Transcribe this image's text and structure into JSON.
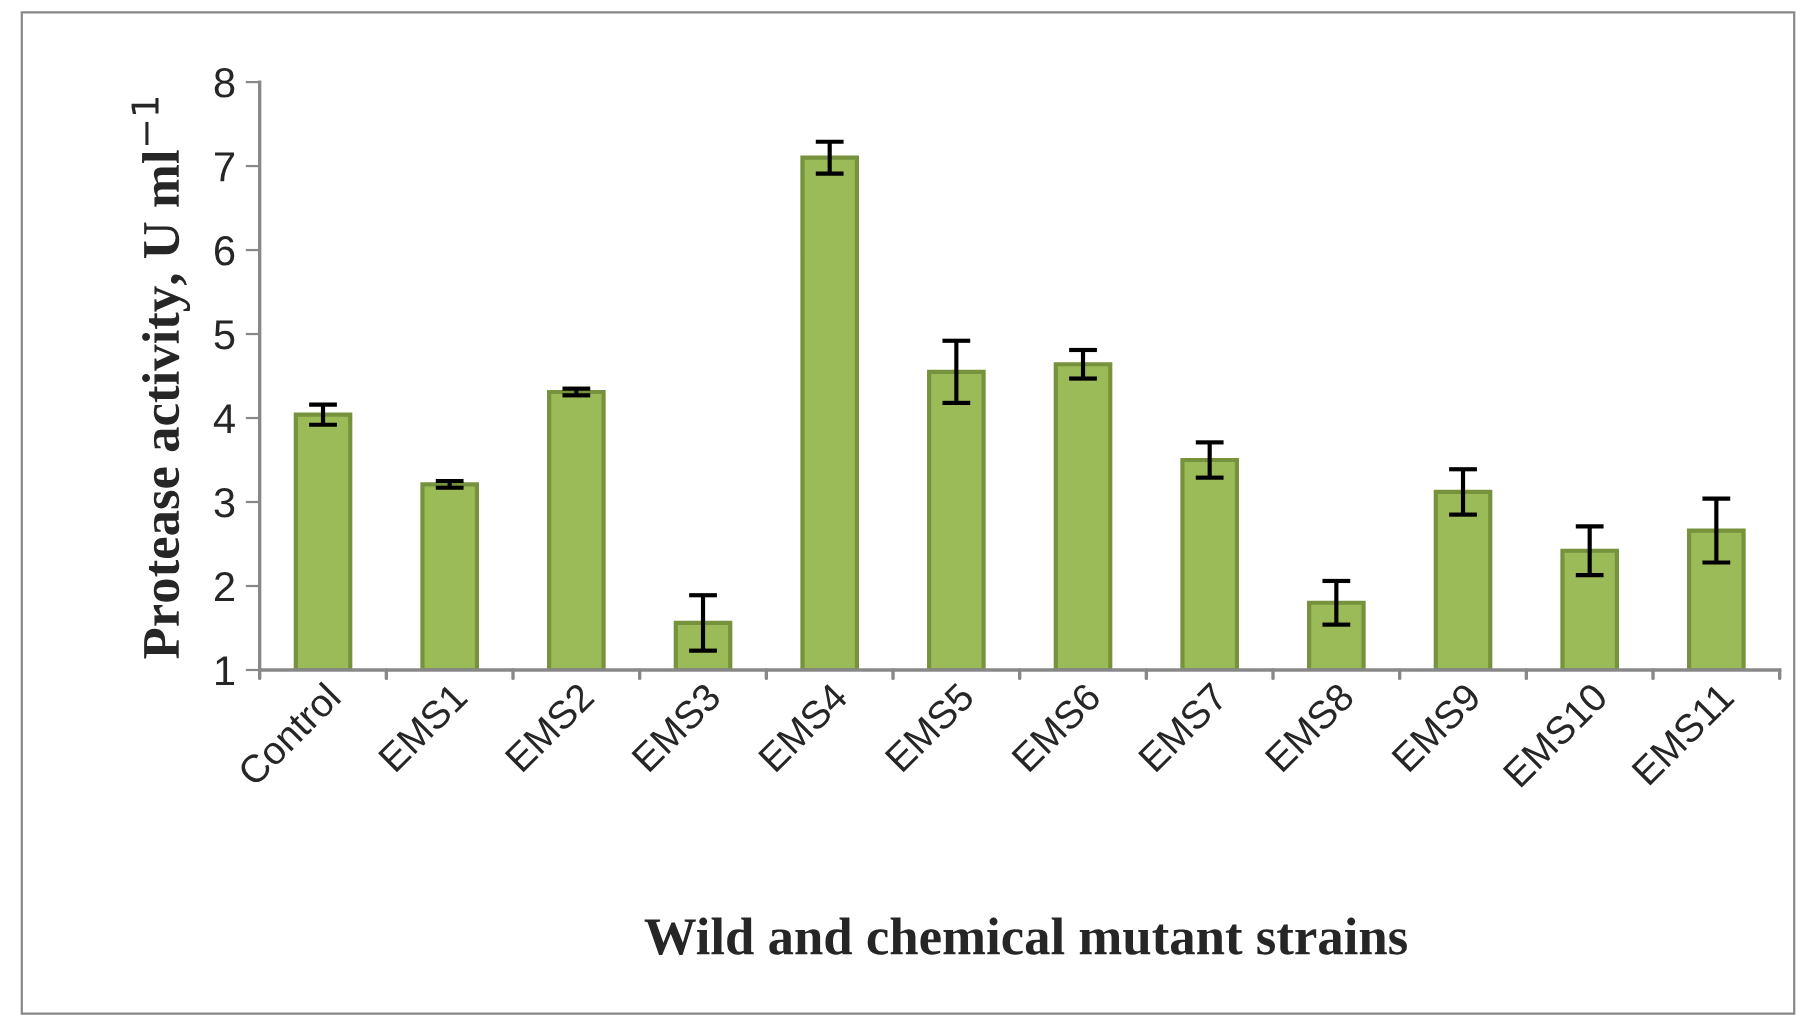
{
  "chart_data": {
    "type": "bar",
    "xlabel": "Wild and chemical mutant strains",
    "ylabel": "Protease activity, U ml$^{−1}$",
    "categories": [
      "Control",
      "EMS1",
      "EMS2",
      "EMS3",
      "EMS4",
      "EMS5",
      "EMS6",
      "EMS7",
      "EMS8",
      "EMS9",
      "EMS10",
      "EMS11"
    ],
    "values": [
      4.04,
      3.21,
      4.31,
      1.56,
      7.1,
      4.55,
      4.64,
      3.5,
      1.8,
      3.12,
      2.42,
      2.66
    ],
    "errors": [
      0.12,
      0.04,
      0.04,
      0.33,
      0.19,
      0.37,
      0.17,
      0.21,
      0.26,
      0.27,
      0.29,
      0.38
    ],
    "color": "#9bbb59",
    "ylim": [
      1,
      8
    ],
    "yticks": [
      1,
      2,
      3,
      4,
      5,
      6,
      7,
      8
    ],
    "grid": false,
    "legend": false
  }
}
